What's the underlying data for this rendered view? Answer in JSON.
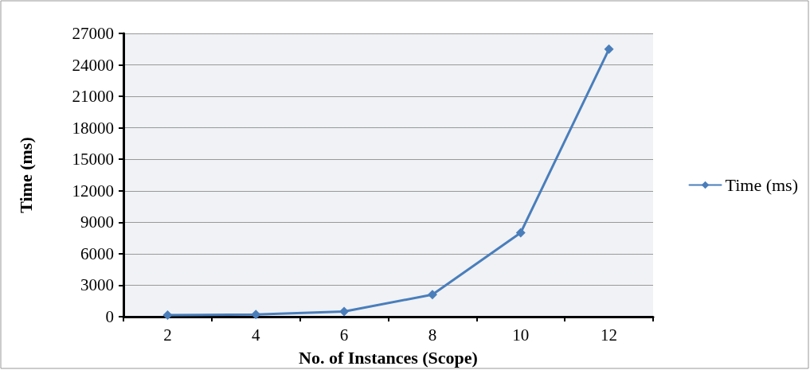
{
  "chart_data": {
    "type": "line",
    "xlabel": "No. of Instances (Scope)",
    "ylabel": "Time (ms)",
    "categories": [
      "2",
      "4",
      "6",
      "8",
      "10",
      "12"
    ],
    "series": [
      {
        "name": "Time (ms)",
        "color": "#4a7ebb",
        "values": [
          150,
          200,
          500,
          2100,
          8000,
          25500
        ]
      }
    ],
    "ylim": [
      0,
      27000
    ],
    "yticks": [
      0,
      3000,
      6000,
      9000,
      12000,
      15000,
      18000,
      21000,
      24000,
      27000
    ],
    "grid": "y",
    "legend": "right",
    "marker": "diamond",
    "line_style": "solid"
  }
}
